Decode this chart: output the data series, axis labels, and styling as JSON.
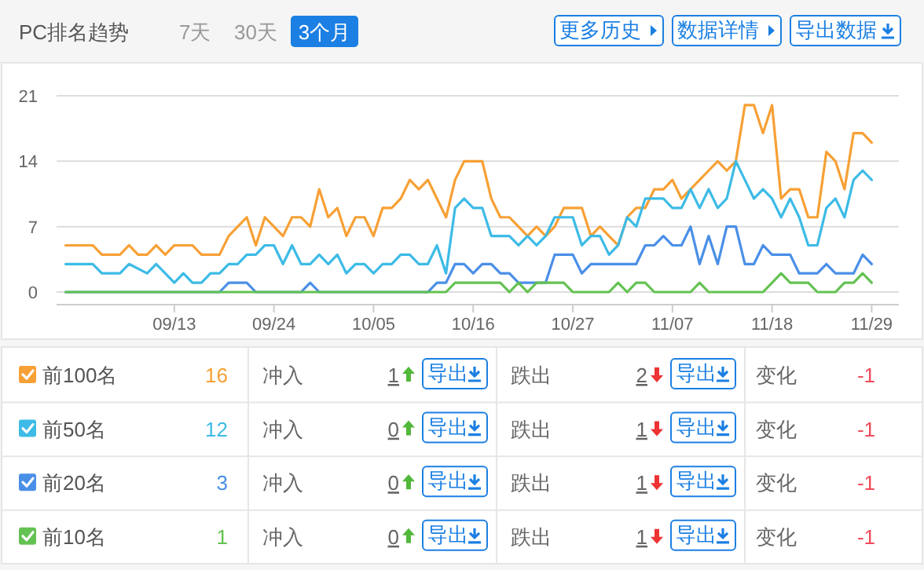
{
  "chart_data": [
    {
      "type": "line",
      "title": "PC排名趋势",
      "xlim": [
        "--08-31",
        "--12-02"
      ],
      "xticks": [
        {
          "value": "--09-13",
          "label": "09/13"
        },
        {
          "value": "--09-24",
          "label": "09/24"
        },
        {
          "value": "--10-05",
          "label": "10/05"
        },
        {
          "value": "--10-16",
          "label": "10/16"
        },
        {
          "value": "--10-27",
          "label": "10/27"
        },
        {
          "value": "--11-07",
          "label": "11/07"
        },
        {
          "value": "--11-18",
          "label": "11/18"
        },
        {
          "value": "--11-29",
          "label": "11/29"
        }
      ],
      "ylim": [
        0,
        21
      ],
      "yticks": [
        0,
        7,
        14,
        21
      ],
      "grid": "y",
      "legend": "bottom",
      "series": [
        {
          "name": "前100名",
          "color": "#f7a035",
          "x": [
            "--09-01",
            "--09-04",
            "--09-05",
            "--09-07",
            "--09-08",
            "--09-09",
            "--09-10",
            "--09-11",
            "--09-12",
            "--09-13",
            "--09-15",
            "--09-16",
            "--09-18",
            "--09-19",
            "--09-20",
            "--09-21",
            "--09-22",
            "--09-23",
            "--09-24",
            "--09-25",
            "--09-26",
            "--09-27",
            "--09-28",
            "--09-29",
            "--09-30",
            "--10-01",
            "--10-02",
            "--10-03",
            "--10-04",
            "--10-05",
            "--10-06",
            "--10-07",
            "--10-08",
            "--10-09",
            "--10-10",
            "--10-11",
            "--10-12",
            "--10-13",
            "--10-14",
            "--10-15",
            "--10-17",
            "--10-18",
            "--10-19",
            "--10-20",
            "--10-21",
            "--10-22",
            "--10-23",
            "--10-24",
            "--10-25",
            "--10-26",
            "--10-27",
            "--10-28",
            "--10-29",
            "--10-30",
            "--10-31",
            "--11-01",
            "--11-02",
            "--11-03",
            "--11-04",
            "--11-05",
            "--11-06",
            "--11-07",
            "--11-08",
            "--11-09",
            "--11-10",
            "--11-11",
            "--11-12",
            "--11-13",
            "--11-14",
            "--11-15",
            "--11-16",
            "--11-17",
            "--11-18",
            "--11-19",
            "--11-20",
            "--11-21",
            "--11-22",
            "--11-23",
            "--11-24",
            "--11-25",
            "--11-26",
            "--11-27",
            "--11-28",
            "--11-29"
          ],
          "values": [
            5,
            5,
            4,
            4,
            5,
            4,
            4,
            5,
            4,
            5,
            5,
            4,
            4,
            6,
            7,
            8,
            5,
            8,
            7,
            6,
            8,
            8,
            7,
            11,
            8,
            9,
            6,
            8,
            8,
            6,
            9,
            9,
            10,
            12,
            11,
            12,
            10,
            8,
            12,
            14,
            14,
            10,
            8,
            8,
            7,
            6,
            7,
            6,
            7,
            9,
            9,
            9,
            6,
            7,
            6,
            5,
            8,
            9,
            9,
            11,
            11,
            12,
            10,
            11,
            12,
            13,
            14,
            13,
            14,
            20,
            20,
            17,
            20,
            10,
            11,
            11,
            8,
            8,
            15,
            14,
            11,
            17,
            17,
            16
          ]
        },
        {
          "name": "前50名",
          "color": "#3dbbe6",
          "x": [
            "--09-01",
            "--09-04",
            "--09-05",
            "--09-07",
            "--09-08",
            "--09-10",
            "--09-11",
            "--09-12",
            "--09-13",
            "--09-14",
            "--09-15",
            "--09-16",
            "--09-17",
            "--09-18",
            "--09-19",
            "--09-20",
            "--09-21",
            "--09-22",
            "--09-23",
            "--09-24",
            "--09-25",
            "--09-26",
            "--09-27",
            "--09-28",
            "--09-29",
            "--09-30",
            "--10-01",
            "--10-02",
            "--10-03",
            "--10-04",
            "--10-05",
            "--10-06",
            "--10-07",
            "--10-08",
            "--10-09",
            "--10-10",
            "--10-11",
            "--10-12",
            "--10-13",
            "--10-14",
            "--10-15",
            "--10-16",
            "--10-17",
            "--10-18",
            "--10-19",
            "--10-20",
            "--10-21",
            "--10-22",
            "--10-23",
            "--10-24",
            "--10-25",
            "--10-26",
            "--10-27",
            "--10-28",
            "--10-29",
            "--10-30",
            "--10-31",
            "--11-01",
            "--11-02",
            "--11-03",
            "--11-04",
            "--11-05",
            "--11-06",
            "--11-07",
            "--11-08",
            "--11-09",
            "--11-10",
            "--11-11",
            "--11-12",
            "--11-13",
            "--11-14",
            "--11-15",
            "--11-16",
            "--11-17",
            "--11-18",
            "--11-19",
            "--11-20",
            "--11-21",
            "--11-22",
            "--11-23",
            "--11-24",
            "--11-25",
            "--11-26",
            "--11-27",
            "--11-28",
            "--11-29"
          ],
          "values": [
            3,
            3,
            2,
            2,
            3,
            2,
            3,
            2,
            1,
            2,
            1,
            1,
            2,
            2,
            3,
            3,
            4,
            4,
            5,
            5,
            3,
            5,
            3,
            3,
            4,
            3,
            4,
            2,
            3,
            3,
            2,
            3,
            3,
            4,
            4,
            3,
            3,
            5,
            2,
            9,
            10,
            9,
            9,
            6,
            6,
            6,
            5,
            6,
            5,
            6,
            8,
            8,
            8,
            5,
            6,
            6,
            4,
            5,
            8,
            7,
            10,
            10,
            10,
            9,
            9,
            11,
            9,
            11,
            9,
            10,
            14,
            12,
            10,
            11,
            10,
            8,
            10,
            8,
            5,
            5,
            9,
            10,
            8,
            12,
            13,
            12
          ]
        },
        {
          "name": "前20名",
          "color": "#4a8fe7",
          "x": [
            "--09-01",
            "--09-18",
            "--09-19",
            "--09-21",
            "--09-22",
            "--09-27",
            "--09-28",
            "--09-29",
            "--10-11",
            "--10-12",
            "--10-13",
            "--10-14",
            "--10-15",
            "--10-16",
            "--10-17",
            "--10-18",
            "--10-19",
            "--10-20",
            "--10-21",
            "--10-22",
            "--10-23",
            "--10-24",
            "--10-25",
            "--10-26",
            "--10-27",
            "--10-28",
            "--10-29",
            "--10-30",
            "--10-31",
            "--11-01",
            "--11-02",
            "--11-03",
            "--11-04",
            "--11-05",
            "--11-06",
            "--11-07",
            "--11-08",
            "--11-09",
            "--11-10",
            "--11-11",
            "--11-12",
            "--11-13",
            "--11-14",
            "--11-15",
            "--11-16",
            "--11-17",
            "--11-18",
            "--11-19",
            "--11-20",
            "--11-21",
            "--11-22",
            "--11-23",
            "--11-24",
            "--11-25",
            "--11-26",
            "--11-27",
            "--11-28",
            "--11-29"
          ],
          "values": [
            0,
            0,
            1,
            1,
            0,
            0,
            1,
            0,
            0,
            1,
            1,
            3,
            3,
            2,
            3,
            3,
            2,
            2,
            1,
            1,
            1,
            1,
            4,
            4,
            4,
            2,
            3,
            3,
            3,
            3,
            3,
            3,
            5,
            5,
            6,
            5,
            5,
            7,
            3,
            6,
            3,
            7,
            7,
            3,
            3,
            5,
            4,
            4,
            4,
            2,
            2,
            2,
            3,
            2,
            2,
            2,
            4,
            3
          ]
        },
        {
          "name": "前10名",
          "color": "#64c252",
          "x": [
            "--09-01",
            "--10-13",
            "--10-14",
            "--10-19",
            "--10-20",
            "--10-21",
            "--10-22",
            "--10-23",
            "--10-26",
            "--10-27",
            "--10-31",
            "--11-01",
            "--11-02",
            "--11-03",
            "--11-04",
            "--11-05",
            "--11-09",
            "--11-10",
            "--11-11",
            "--11-17",
            "--11-18",
            "--11-19",
            "--11-20",
            "--11-22",
            "--11-23",
            "--11-25",
            "--11-26",
            "--11-27",
            "--11-28",
            "--11-29"
          ],
          "values": [
            0,
            0,
            1,
            1,
            0,
            1,
            0,
            1,
            1,
            0,
            0,
            1,
            0,
            1,
            1,
            0,
            0,
            1,
            0,
            0,
            1,
            2,
            1,
            1,
            0,
            0,
            1,
            1,
            2,
            1
          ]
        }
      ]
    },
    {
      "type": "other",
      "annotations": [
        "7天",
        "30天",
        "3个月",
        "更多历史",
        "数据详情",
        "导出数据",
        "16",
        "冲入",
        "1",
        "导出",
        "跌出",
        "2",
        "导出",
        "变化",
        "-1",
        "12",
        "冲入",
        "0",
        "导出",
        "跌出",
        "1",
        "导出",
        "变化",
        "-1",
        "3",
        "冲入",
        "0",
        "导出",
        "跌出",
        "1",
        "导出",
        "变化",
        "-1",
        "1",
        "冲入",
        "0",
        "导出",
        "跌出",
        "1",
        "导出",
        "变化",
        "-1"
      ]
    }
  ]
}
